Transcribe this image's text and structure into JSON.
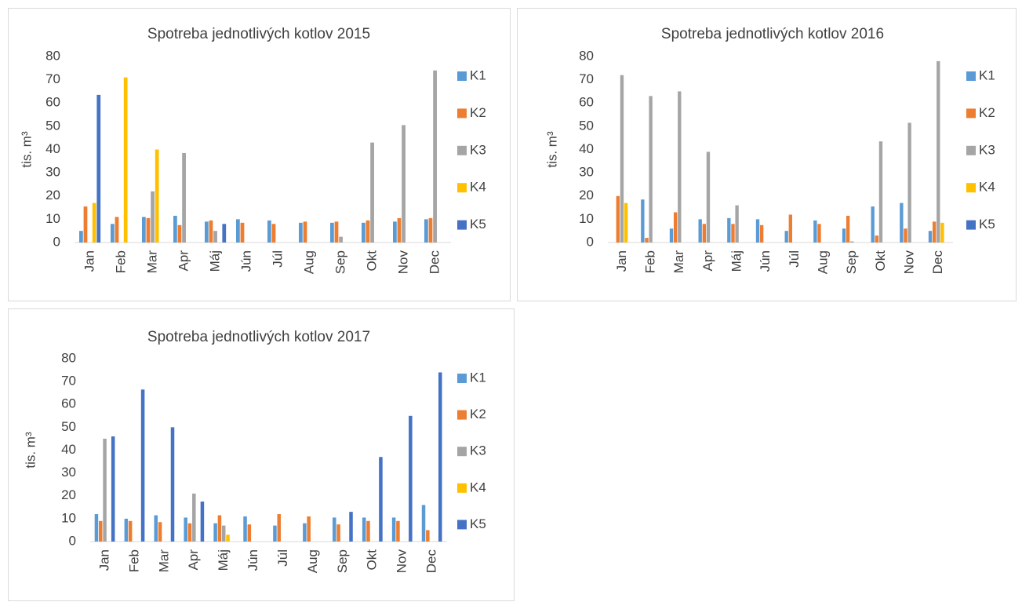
{
  "chart_data": [
    {
      "type": "bar",
      "title": "Spotreba jednotlivých kotlov 2015",
      "y_label": "tis. m³",
      "categories": [
        "Jan",
        "Feb",
        "Mar",
        "Apr",
        "Máj",
        "Jún",
        "Júl",
        "Aug",
        "Sep",
        "Okt",
        "Nov",
        "Dec"
      ],
      "ylim": [
        0,
        80
      ],
      "yticks": [
        0,
        10,
        20,
        30,
        40,
        50,
        60,
        70,
        80
      ],
      "legend": "right",
      "series": [
        {
          "name": "K1",
          "color": "#5b9bd5",
          "values": [
            5,
            8,
            11,
            11.5,
            9,
            10,
            9.5,
            8.5,
            8.5,
            8.5,
            9,
            10
          ]
        },
        {
          "name": "K2",
          "color": "#ed7d31",
          "values": [
            15.5,
            11,
            10.5,
            7.5,
            9.5,
            8.5,
            8,
            9,
            9,
            9.5,
            10.5,
            10.5
          ]
        },
        {
          "name": "K3",
          "color": "#a5a5a5",
          "values": [
            0,
            0,
            22,
            38.5,
            5,
            0,
            0,
            0,
            2.5,
            43,
            50.5,
            74
          ]
        },
        {
          "name": "K4",
          "color": "#ffc000",
          "values": [
            17,
            71,
            40,
            0,
            0,
            0,
            0,
            0,
            0,
            0,
            0,
            0
          ]
        },
        {
          "name": "K5",
          "color": "#4472c4",
          "values": [
            63.5,
            0,
            0,
            0,
            8,
            0,
            0,
            0,
            0,
            0,
            0,
            0
          ]
        }
      ]
    },
    {
      "type": "bar",
      "title": "Spotreba jednotlivých kotlov 2016",
      "y_label": "tis. m³",
      "categories": [
        "Jan",
        "Feb",
        "Mar",
        "Apr",
        "Máj",
        "Jún",
        "Júl",
        "Aug",
        "Sep",
        "Okt",
        "Nov",
        "Dec"
      ],
      "ylim": [
        0,
        80
      ],
      "yticks": [
        0,
        10,
        20,
        30,
        40,
        50,
        60,
        70,
        80
      ],
      "legend": "right",
      "series": [
        {
          "name": "K1",
          "color": "#5b9bd5",
          "values": [
            0,
            18.5,
            6,
            10,
            10.5,
            10,
            5,
            9.5,
            6,
            15.5,
            17,
            5
          ]
        },
        {
          "name": "K2",
          "color": "#ed7d31",
          "values": [
            20,
            2,
            13,
            8,
            8,
            7.5,
            12,
            8,
            11.5,
            3,
            6,
            9
          ]
        },
        {
          "name": "K3",
          "color": "#a5a5a5",
          "values": [
            72,
            63,
            65,
            39,
            16,
            0,
            0,
            0,
            0.5,
            43.5,
            51.5,
            78
          ]
        },
        {
          "name": "K4",
          "color": "#ffc000",
          "values": [
            17,
            0,
            0,
            0,
            0,
            0,
            0,
            0,
            0,
            0,
            0,
            8.5
          ]
        },
        {
          "name": "K5",
          "color": "#4472c4",
          "values": [
            0,
            0,
            0,
            0,
            0,
            0,
            0,
            0,
            0,
            0,
            0,
            0
          ]
        }
      ]
    },
    {
      "type": "bar",
      "title": "Spotreba jednotlivých kotlov 2017",
      "y_label": "tis. m³",
      "categories": [
        "Jan",
        "Feb",
        "Mar",
        "Apr",
        "Máj",
        "Jún",
        "Júl",
        "Aug",
        "Sep",
        "Okt",
        "Nov",
        "Dec"
      ],
      "ylim": [
        0,
        80
      ],
      "yticks": [
        0,
        10,
        20,
        30,
        40,
        50,
        60,
        70,
        80
      ],
      "legend": "right",
      "series": [
        {
          "name": "K1",
          "color": "#5b9bd5",
          "values": [
            12,
            10,
            11.5,
            10.5,
            8,
            11,
            7,
            8,
            10.5,
            10.5,
            10.5,
            16
          ]
        },
        {
          "name": "K2",
          "color": "#ed7d31",
          "values": [
            9,
            9,
            8.5,
            8,
            11.5,
            7.5,
            12,
            11,
            7.5,
            9,
            9,
            5
          ]
        },
        {
          "name": "K3",
          "color": "#a5a5a5",
          "values": [
            45,
            0,
            0,
            21,
            7,
            0,
            0,
            0,
            0,
            0,
            0,
            0
          ]
        },
        {
          "name": "K4",
          "color": "#ffc000",
          "values": [
            0,
            0,
            0,
            0,
            3,
            0,
            0,
            0,
            0,
            0,
            0,
            0
          ]
        },
        {
          "name": "K5",
          "color": "#4472c4",
          "values": [
            46,
            66.5,
            50,
            17.5,
            0,
            0,
            0,
            0,
            13,
            37,
            55,
            74
          ]
        }
      ]
    }
  ]
}
